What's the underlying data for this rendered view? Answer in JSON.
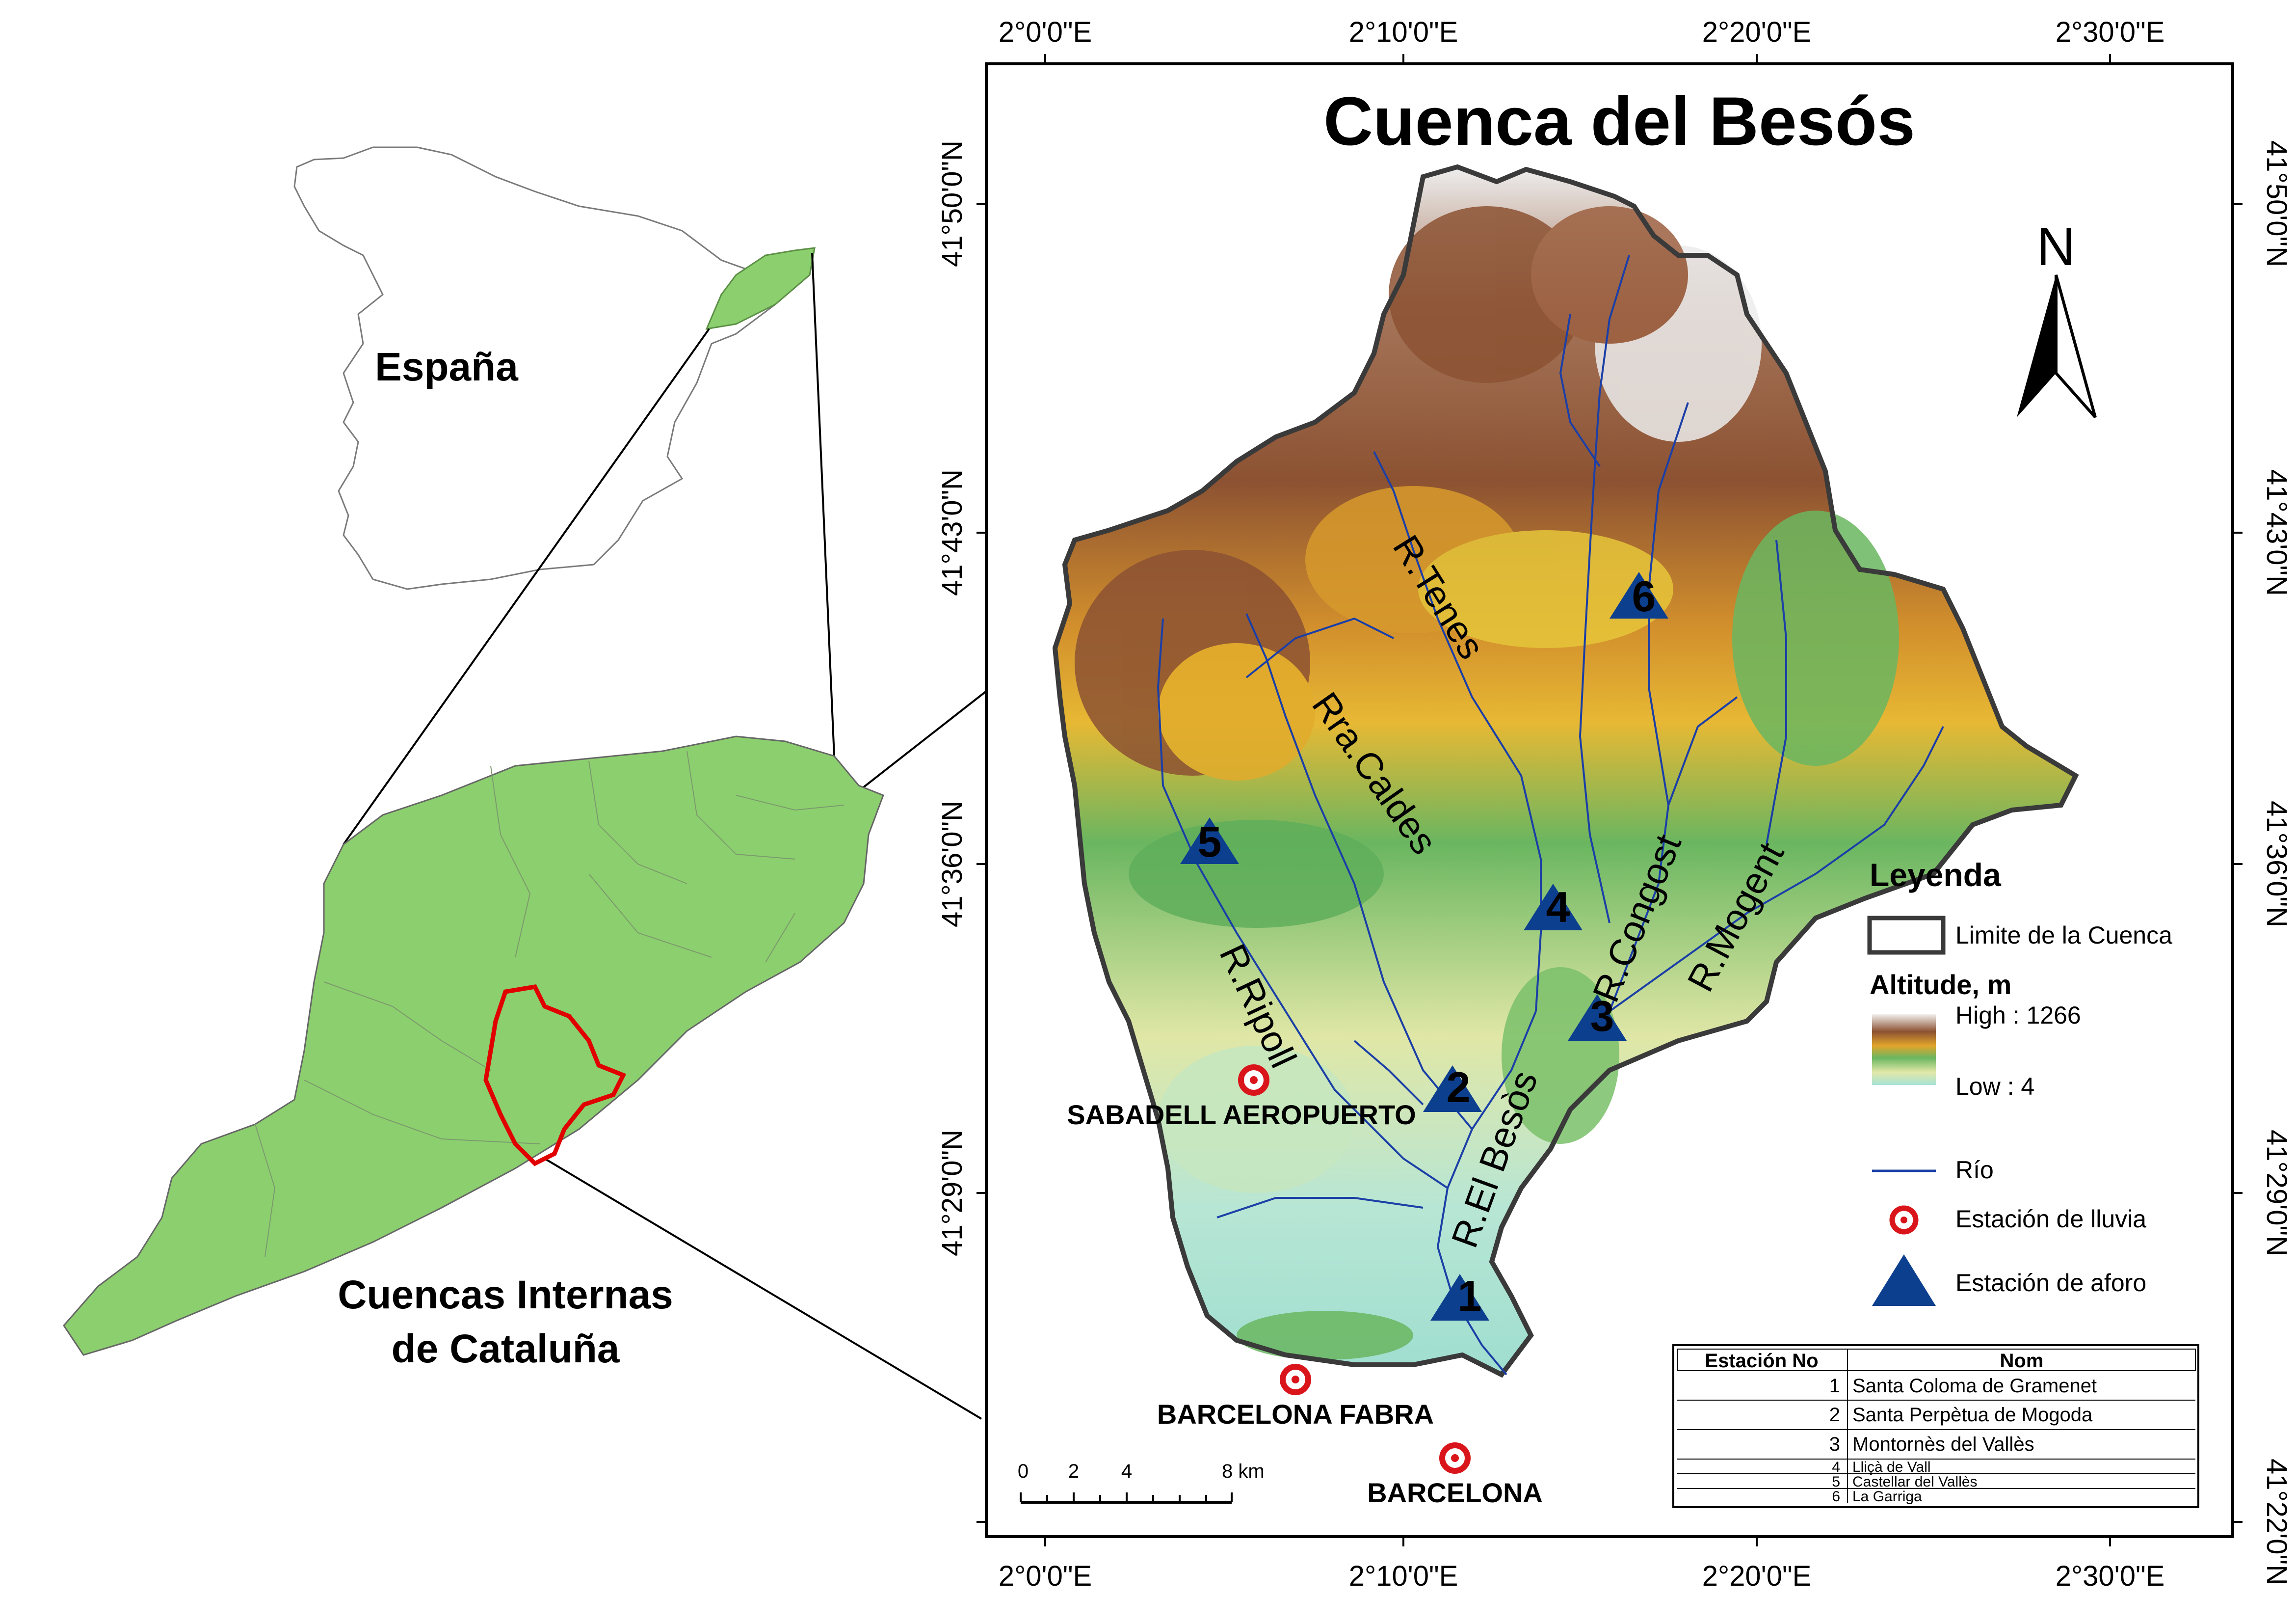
{
  "title": "Cuenca del Besós",
  "lon_ticks": [
    "2°0'0\"E",
    "2°10'0\"E",
    "2°20'0\"E",
    "2°30'0\"E"
  ],
  "lat_ticks": [
    "41°50'0\"N",
    "41°43'0\"N",
    "41°36'0\"N",
    "41°29'0\"N",
    "41°22'0\"N"
  ],
  "north": "N",
  "insets": {
    "spain": "España",
    "catalonia_line1": "Cuencas Internas",
    "catalonia_line2": "de Cataluña"
  },
  "rivers": {
    "tenes": "R.Tenes",
    "caldes": "Rra.Caldes",
    "ripoll": "R.Ripoll",
    "besos": "R.El Besòs",
    "congost": "R.Congost",
    "mogent": "R.Mogent"
  },
  "stations": [
    "1",
    "2",
    "3",
    "4",
    "5",
    "6"
  ],
  "rain_stations": {
    "sabadell": "SABADELL AEROPUERTO",
    "fabra": "BARCELONA FABRA",
    "barcelona": "BARCELONA"
  },
  "legend": {
    "title": "Leyenda",
    "limit": "Limite de la Cuenca",
    "altitude_title": "Altitude, m",
    "high": "High : 1266",
    "low": "Low : 4",
    "river": "Río",
    "rain": "Estación de lluvia",
    "gauge": "Estación de aforo"
  },
  "colors": {
    "basin_low": "#b8e6d8",
    "basin_mid": "#e2e8a8",
    "green": "#5fae5a",
    "yellow": "#e0ac2a",
    "brown": "#8c5232",
    "high": "#f2f2f2",
    "river": "#1b3fa6",
    "gauge": "#0d3f8f",
    "rain": "#d9141b",
    "catalonia": "#8ccf6e",
    "basin_outline_inset": "#e00000"
  },
  "table": {
    "headers": [
      "Estación No",
      "Nom"
    ],
    "rows": [
      {
        "no": "1",
        "nom": "Santa Coloma de Gramenet"
      },
      {
        "no": "2",
        "nom": "Santa Perpètua de Mogoda"
      },
      {
        "no": "3",
        "nom": " Montornès del Vallès"
      },
      {
        "no": "4",
        "nom": "Lliçà de Vall"
      },
      {
        "no": "5",
        "nom": "Castellar del Vallès"
      },
      {
        "no": "6",
        "nom": "La Garriga"
      }
    ]
  },
  "scale": {
    "labels": [
      "0",
      "2",
      "4",
      "8 km"
    ]
  }
}
